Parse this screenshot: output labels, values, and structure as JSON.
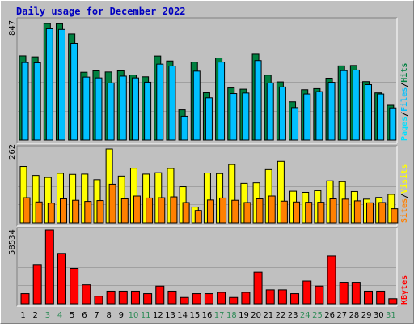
{
  "title": "Daily usage for December 2022",
  "colors": {
    "hits": "#008040",
    "files": "#00c0ff",
    "pages": "#00e0ff",
    "visits": "#ffff00",
    "sites": "#ff8000",
    "kbytes": "#ff0000",
    "weekend": "#2e8b57",
    "weekday": "#000000"
  },
  "chart_data": [
    {
      "type": "bar",
      "panel": "hits-files-pages",
      "ymax_label": "847",
      "ylim": [
        0,
        847
      ],
      "categories": [
        "1",
        "2",
        "3",
        "4",
        "5",
        "6",
        "7",
        "8",
        "9",
        "10",
        "11",
        "12",
        "13",
        "14",
        "15",
        "16",
        "17",
        "18",
        "19",
        "20",
        "21",
        "22",
        "23",
        "24",
        "25",
        "26",
        "27",
        "28",
        "29",
        "30",
        "31"
      ],
      "weekend_days": [
        "3",
        "4",
        "10",
        "11",
        "17",
        "18",
        "24",
        "25",
        "31"
      ],
      "series": [
        {
          "name": "Hits",
          "values": [
            612,
            605,
            847,
            845,
            771,
            493,
            503,
            495,
            503,
            473,
            460,
            611,
            575,
            220,
            567,
            344,
            597,
            379,
            370,
            624,
            472,
            423,
            278,
            366,
            374,
            450,
            539,
            542,
            425,
            343,
            253
          ]
        },
        {
          "name": "Files",
          "values": [
            564,
            562,
            809,
            804,
            703,
            458,
            452,
            415,
            465,
            452,
            421,
            552,
            538,
            174,
            501,
            307,
            567,
            338,
            342,
            578,
            415,
            386,
            236,
            335,
            352,
            420,
            505,
            509,
            403,
            335,
            234
          ]
        },
        {
          "name": "Pages",
          "values": [
            0,
            0,
            0,
            0,
            0,
            0,
            0,
            0,
            0,
            0,
            0,
            0,
            0,
            0,
            0,
            0,
            0,
            0,
            0,
            0,
            0,
            0,
            0,
            0,
            0,
            0,
            0,
            0,
            0,
            0,
            0
          ]
        }
      ],
      "side_labels": [
        "Pages",
        "/",
        "Files",
        "/",
        "Hits"
      ]
    },
    {
      "type": "bar",
      "panel": "visits-sites",
      "ymax_label": "262",
      "ylim": [
        0,
        262
      ],
      "categories": [
        "1",
        "2",
        "3",
        "4",
        "5",
        "6",
        "7",
        "8",
        "9",
        "10",
        "11",
        "12",
        "13",
        "14",
        "15",
        "16",
        "17",
        "18",
        "19",
        "20",
        "21",
        "22",
        "23",
        "24",
        "25",
        "26",
        "27",
        "28",
        "29",
        "30",
        "31"
      ],
      "series": [
        {
          "name": "Visits",
          "values": [
            200,
            168,
            161,
            176,
            172,
            173,
            153,
            262,
            166,
            194,
            173,
            178,
            193,
            128,
            56,
            177,
            175,
            207,
            140,
            142,
            189,
            218,
            112,
            108,
            114,
            149,
            146,
            111,
            84,
            90,
            101
          ]
        },
        {
          "name": "Sites",
          "values": [
            89,
            74,
            70,
            85,
            80,
            76,
            79,
            137,
            85,
            95,
            88,
            89,
            92,
            72,
            44,
            81,
            88,
            80,
            72,
            85,
            95,
            77,
            74,
            73,
            73,
            85,
            84,
            78,
            71,
            72,
            50
          ]
        }
      ],
      "side_labels": [
        "Sites",
        "/",
        "Visits"
      ]
    },
    {
      "type": "bar",
      "panel": "kbytes",
      "ymax_label": "58534",
      "ylim": [
        0,
        58534
      ],
      "categories": [
        "1",
        "2",
        "3",
        "4",
        "5",
        "6",
        "7",
        "8",
        "9",
        "10",
        "11",
        "12",
        "13",
        "14",
        "15",
        "16",
        "17",
        "18",
        "19",
        "20",
        "21",
        "22",
        "23",
        "24",
        "25",
        "26",
        "27",
        "28",
        "29",
        "30",
        "31"
      ],
      "series": [
        {
          "name": "KBytes",
          "values": [
            8000,
            31000,
            58534,
            40000,
            28000,
            15000,
            6000,
            10000,
            10000,
            10000,
            8000,
            14000,
            10000,
            5000,
            8000,
            8000,
            9000,
            5000,
            9000,
            25000,
            11000,
            11000,
            8000,
            18000,
            14000,
            38000,
            17000,
            17000,
            10000,
            10000,
            4000
          ]
        }
      ],
      "side_labels": [
        "KBytes"
      ]
    }
  ]
}
